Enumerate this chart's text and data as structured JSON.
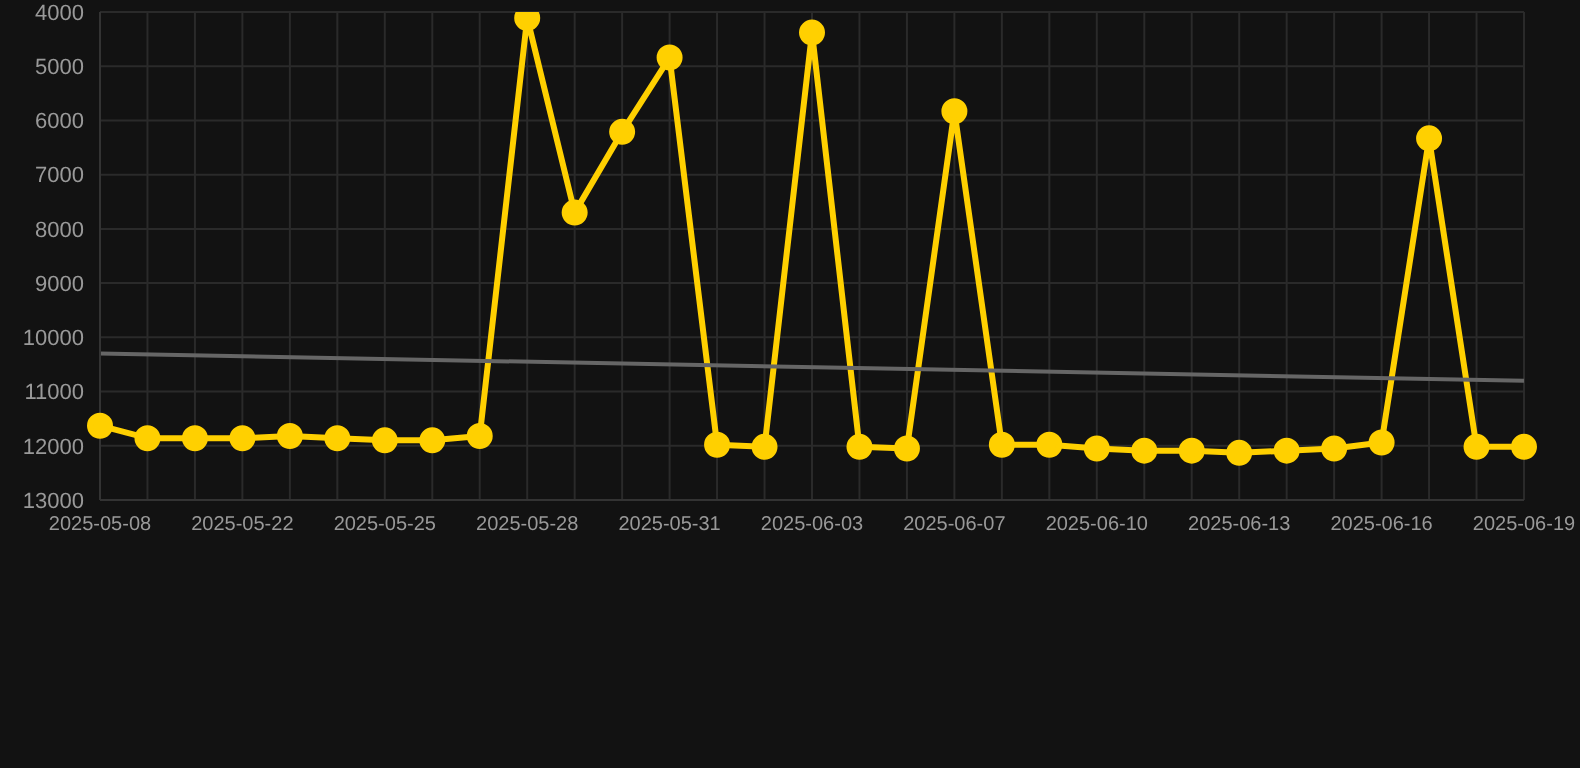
{
  "chart_data": {
    "type": "line",
    "categories": [
      "2025-05-08",
      null,
      null,
      "2025-05-22",
      null,
      null,
      "2025-05-25",
      null,
      null,
      "2025-05-28",
      null,
      null,
      "2025-05-31",
      null,
      null,
      "2025-06-03",
      null,
      null,
      "2025-06-07",
      null,
      null,
      "2025-06-10",
      null,
      null,
      "2025-06-13",
      null,
      null,
      "2025-06-16",
      null,
      null,
      "2025-06-19"
    ],
    "series": [
      {
        "color": "#ffd000",
        "marker": "circle",
        "values": [
          11630,
          11860,
          11860,
          11860,
          11820,
          11860,
          11900,
          11900,
          11820,
          4110,
          7700,
          6210,
          4840,
          11980,
          12020,
          4380,
          12020,
          12050,
          5830,
          11980,
          11980,
          12050,
          12090,
          12090,
          12130,
          12090,
          12050,
          11940,
          6330,
          12020,
          12020
        ]
      },
      {
        "color": "#666666",
        "marker": "none",
        "values": [
          10300,
          null,
          null,
          null,
          null,
          null,
          null,
          null,
          null,
          null,
          null,
          null,
          null,
          null,
          null,
          null,
          null,
          null,
          null,
          null,
          null,
          null,
          null,
          null,
          null,
          null,
          null,
          null,
          null,
          null,
          10800
        ]
      }
    ],
    "ylim": [
      13000,
      4000
    ],
    "yticks": [
      4000,
      5000,
      6000,
      7000,
      8000,
      9000,
      10000,
      11000,
      12000,
      13000
    ],
    "grid": true
  }
}
